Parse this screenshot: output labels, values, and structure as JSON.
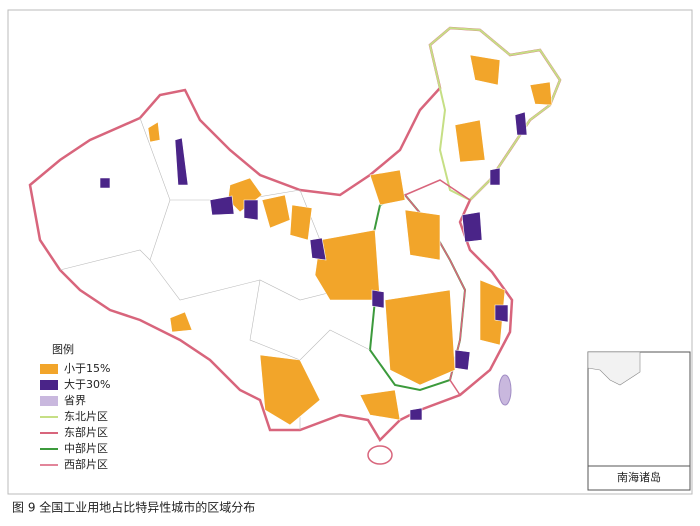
{
  "legend": {
    "title": "图例",
    "items": [
      "小于15%",
      "大于30%",
      "省界",
      "东北片区",
      "东部片区",
      "中部片区",
      "西部片区"
    ]
  },
  "inset_label": "南海诸岛",
  "caption": "图 9  全国工业用地占比特异性城市的区域分布"
}
